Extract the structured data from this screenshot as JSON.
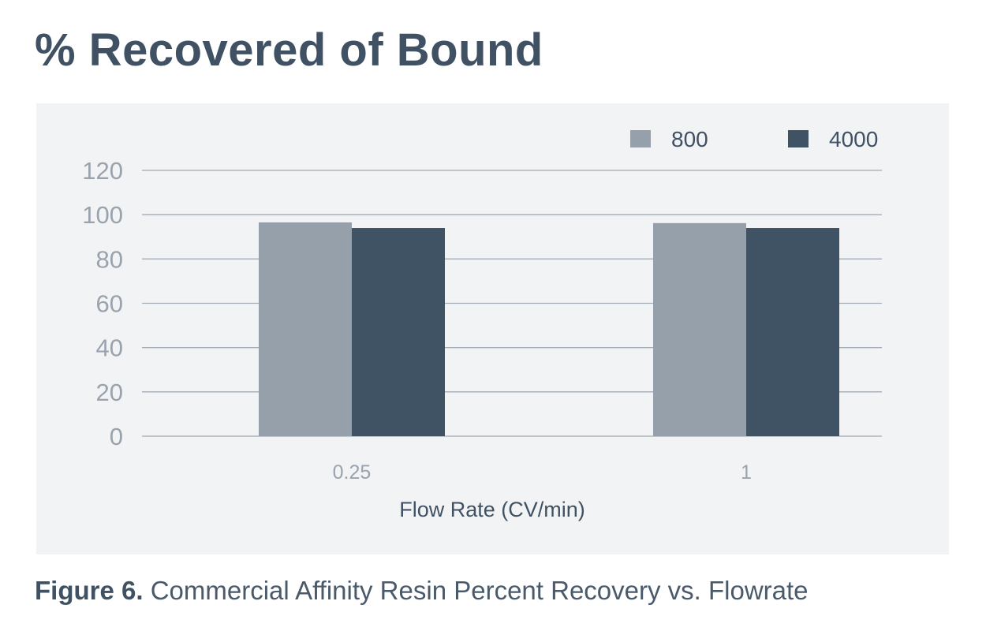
{
  "page_title": "% Recovered of Bound",
  "caption": {
    "label": "Figure 6.",
    "text": "Commercial Affinity Resin Percent Recovery vs. Flowrate"
  },
  "colors": {
    "text": "#3f5163",
    "panel_background": "#f2f3f5",
    "gridline": "#a3abb4",
    "tick_text": "#9aa3ad",
    "series_800": "#95a0ab",
    "series_4000": "#405364"
  },
  "chart_data": {
    "type": "bar",
    "title": "",
    "xlabel": "Flow Rate (CV/min)",
    "ylabel": "",
    "categories": [
      "0.25",
      "1"
    ],
    "series": [
      {
        "name": "800",
        "values": [
          96.5,
          96.2
        ],
        "color": "#95a0ab"
      },
      {
        "name": "4000",
        "values": [
          94,
          94
        ],
        "color": "#405364"
      }
    ],
    "ylim": [
      0,
      120
    ],
    "yticks": [
      0,
      20,
      40,
      60,
      80,
      100,
      120
    ],
    "grid": true,
    "legend_position": "top-right"
  }
}
